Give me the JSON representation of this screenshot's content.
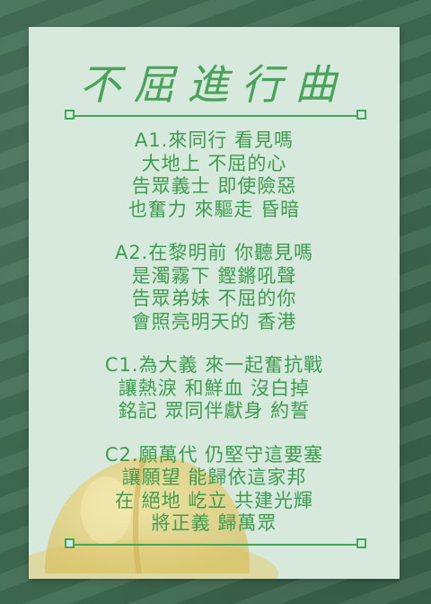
{
  "title": "不屈進行曲",
  "stanzas": [
    {
      "lines": [
        "A1.來同行  看見嗎",
        "大地上  不屈的心",
        "告眾義士  即使險惡",
        "也奮力  來驅走  昏暗"
      ]
    },
    {
      "lines": [
        "A2.在黎明前  你聽見嗎",
        "是濁霧下  鏗鏘吼聲",
        "告眾弟妹  不屈的你",
        "會照亮明天的  香港"
      ]
    },
    {
      "lines": [
        "C1.為大義  來一起奮抗戰",
        "讓熱淚  和鮮血  沒白掉",
        "銘記  眾同伴獻身  約誓"
      ]
    },
    {
      "lines": [
        "C2.願萬代  仍堅守這要塞",
        "讓願望  能歸依這家邦",
        "在  絕地  屹立  共建光輝",
        "將正義  歸萬眾"
      ]
    }
  ],
  "colors": {
    "text": "#3e9d50",
    "card": "#d7e8dc",
    "background": "#3f6b52",
    "helmet": "#e8d27a"
  }
}
